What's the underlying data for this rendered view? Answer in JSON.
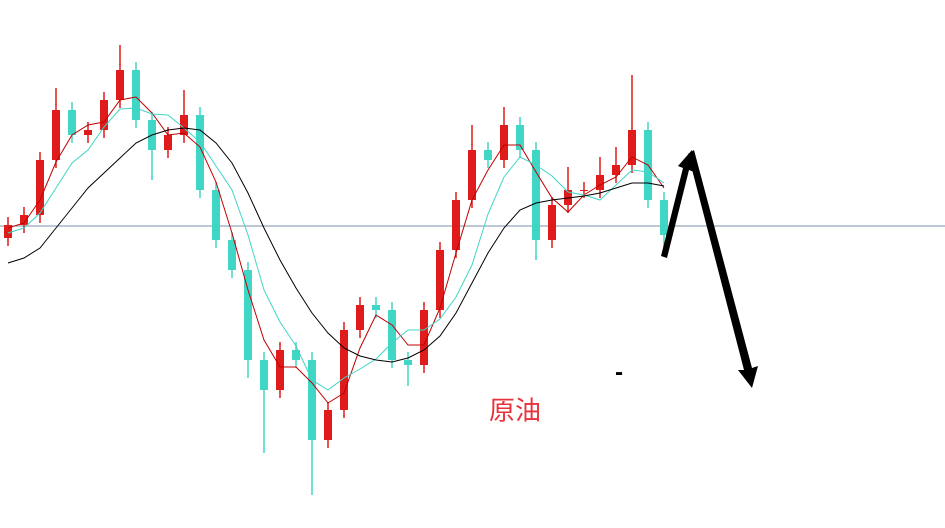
{
  "chart_data": {
    "type": "candlestick",
    "ylim": [
      0,
      528
    ],
    "hline": 302,
    "up_color": "#e01b1b",
    "down_color": "#3fd6c6",
    "open": [
      290,
      303,
      313,
      368,
      418,
      393,
      398,
      428,
      458,
      408,
      378,
      393,
      413,
      338,
      288,
      258,
      168,
      138,
      178,
      168,
      88,
      118,
      198,
      223,
      218,
      168,
      163,
      218,
      278,
      328,
      378,
      368,
      403,
      378,
      288,
      323,
      338,
      338,
      353,
      363,
      398,
      328
    ],
    "high": [
      311,
      321,
      376,
      440,
      426,
      406,
      436,
      483,
      466,
      416,
      401,
      438,
      421,
      346,
      296,
      266,
      176,
      186,
      186,
      176,
      126,
      206,
      231,
      231,
      226,
      176,
      226,
      286,
      336,
      403,
      386,
      421,
      411,
      386,
      331,
      361,
      346,
      371,
      381,
      453,
      406,
      336
    ],
    "low": [
      282,
      295,
      305,
      360,
      385,
      385,
      390,
      420,
      400,
      348,
      370,
      385,
      330,
      280,
      250,
      150,
      75,
      130,
      160,
      33,
      80,
      110,
      190,
      210,
      160,
      142,
      155,
      210,
      270,
      320,
      360,
      360,
      370,
      268,
      280,
      315,
      330,
      330,
      345,
      355,
      320,
      273
    ],
    "close": [
      303,
      313,
      368,
      418,
      393,
      398,
      428,
      458,
      408,
      378,
      393,
      413,
      338,
      288,
      258,
      168,
      138,
      178,
      168,
      88,
      118,
      198,
      223,
      218,
      168,
      163,
      218,
      278,
      328,
      378,
      368,
      403,
      378,
      288,
      323,
      338,
      338,
      353,
      363,
      398,
      328,
      293
    ],
    "series": [
      {
        "color": "#c00000",
        "values": [
          300,
          305,
          328,
          366,
          393,
          403,
          406,
          428,
          431,
          415,
          393,
          395,
          381,
          346,
          295,
          238,
          188,
          161,
          161,
          145,
          125,
          135,
          180,
          213,
          203,
          183,
          183,
          220,
          275,
          328,
          358,
          383,
          383,
          356,
          330,
          316,
          333,
          343,
          351,
          371,
          363,
          340
        ]
      },
      {
        "color": "#3fd6c6",
        "values": [
          295,
          300,
          315,
          340,
          365,
          378,
          401,
          419,
          420,
          414,
          413,
          400,
          386,
          362,
          338,
          293,
          238,
          206,
          182,
          148,
          138,
          150,
          159,
          169,
          185,
          198,
          198,
          209,
          231,
          263,
          314,
          351,
          371,
          363,
          352,
          336,
          333,
          328,
          343,
          358,
          356,
          345
        ]
      },
      {
        "color": "#000000",
        "values": [
          265,
          270,
          280,
          300,
          320,
          340,
          355,
          370,
          385,
          393,
          398,
          400,
          398,
          385,
          365,
          335,
          300,
          268,
          240,
          215,
          195,
          180,
          172,
          168,
          166,
          170,
          178,
          192,
          215,
          245,
          275,
          300,
          318,
          325,
          328,
          330,
          332,
          335,
          340,
          345,
          345,
          342
        ]
      }
    ],
    "label": "原油",
    "marker": "-"
  }
}
